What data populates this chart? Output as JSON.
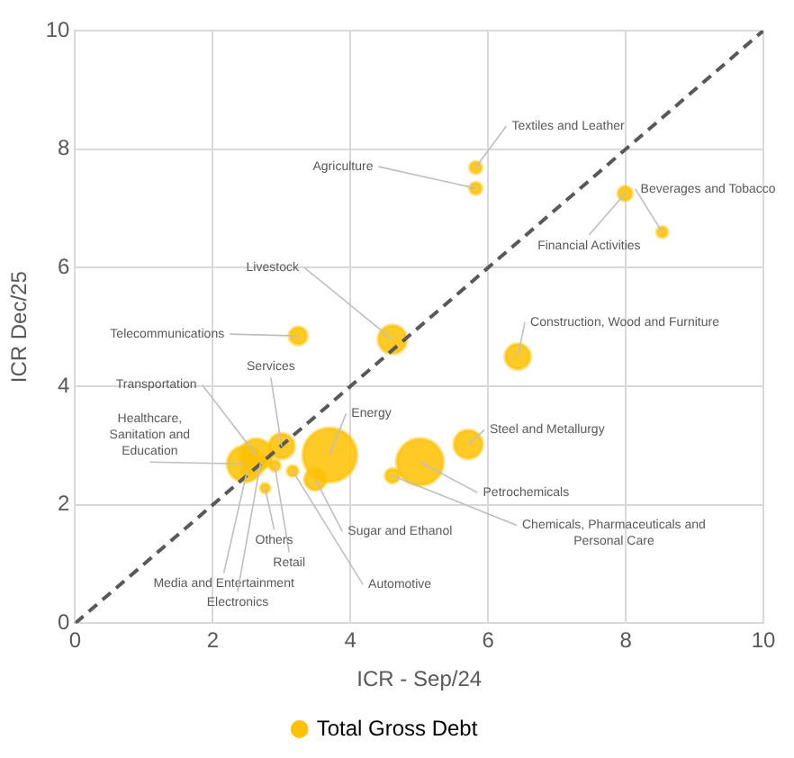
{
  "chart_data": {
    "type": "bubble",
    "xlabel": "ICR - Sep/24",
    "ylabel": "ICR Dec/25",
    "xlim": [
      0,
      10
    ],
    "ylim": [
      0,
      10
    ],
    "xticks": [
      0,
      2,
      4,
      6,
      8,
      10
    ],
    "yticks": [
      0,
      2,
      4,
      6,
      8,
      10
    ],
    "grid": true,
    "legend": "bottom",
    "series": [
      {
        "name": "Total Gross Debt",
        "color": "#ffc000",
        "x": [
          5.82,
          5.82,
          7.99,
          8.53,
          4.61,
          3.24,
          6.43,
          3.7,
          5.71,
          5.01,
          4.61,
          3.49,
          3.16,
          3.0,
          2.9,
          2.47,
          2.63,
          2.76,
          2.5,
          2.7
        ],
        "values": [
          7.69,
          7.34,
          7.25,
          6.6,
          4.79,
          4.85,
          4.5,
          2.84,
          3.02,
          2.72,
          2.49,
          2.43,
          2.57,
          2.99,
          2.66,
          2.69,
          2.84,
          2.28,
          2.58,
          2.75
        ],
        "sizes": [
          0.05,
          0.05,
          0.07,
          0.04,
          0.28,
          0.11,
          0.22,
          1,
          0.28,
          0.75,
          0.07,
          0.16,
          0.04,
          0.22,
          0.04,
          0.44,
          0.36,
          0.03,
          0.04,
          0.04
        ]
      },
      {
        "type": "line",
        "color": "#595959",
        "line_style": "dashed",
        "marker": "none",
        "x": [
          0,
          10
        ],
        "values": [
          0,
          10
        ]
      }
    ],
    "annotations": [
      {
        "text": "Textiles and Leather",
        "x": 5.82,
        "y": 7.69
      },
      {
        "text": "Agriculture",
        "x": 5.82,
        "y": 7.34
      },
      {
        "text": "Financial Activities",
        "x": 7.99,
        "y": 7.25
      },
      {
        "text": "Beverages and Tobacco",
        "x": 8.53,
        "y": 6.6
      },
      {
        "text": "Livestock",
        "x": 4.61,
        "y": 4.79
      },
      {
        "text": "Telecommunications",
        "x": 3.24,
        "y": 4.85
      },
      {
        "text": "Construction, Wood and Furniture",
        "x": 6.43,
        "y": 4.5
      },
      {
        "text": "Energy",
        "x": 3.7,
        "y": 2.84
      },
      {
        "text": "Steel and Metallurgy",
        "x": 5.71,
        "y": 3.02
      },
      {
        "text": "Petrochemicals",
        "x": 5.01,
        "y": 2.72
      },
      {
        "text": "Chemicals, Pharmaceuticals and Personal Care",
        "x": 4.61,
        "y": 2.49
      },
      {
        "text": "Sugar and Ethanol",
        "x": 3.49,
        "y": 2.43
      },
      {
        "text": "Automotive",
        "x": 3.16,
        "y": 2.57
      },
      {
        "text": "Services",
        "x": 3.0,
        "y": 2.99
      },
      {
        "text": "Retail",
        "x": 2.9,
        "y": 2.66
      },
      {
        "text": "Healthcare, Sanitation and Education",
        "x": 2.47,
        "y": 2.69
      },
      {
        "text": "Transportation",
        "x": 2.63,
        "y": 2.84
      },
      {
        "text": "Others",
        "x": 2.76,
        "y": 2.28
      },
      {
        "text": "Media and Entertainment",
        "x": 2.5,
        "y": 2.58
      },
      {
        "text": "Electronics",
        "x": 2.7,
        "y": 2.75
      }
    ]
  }
}
